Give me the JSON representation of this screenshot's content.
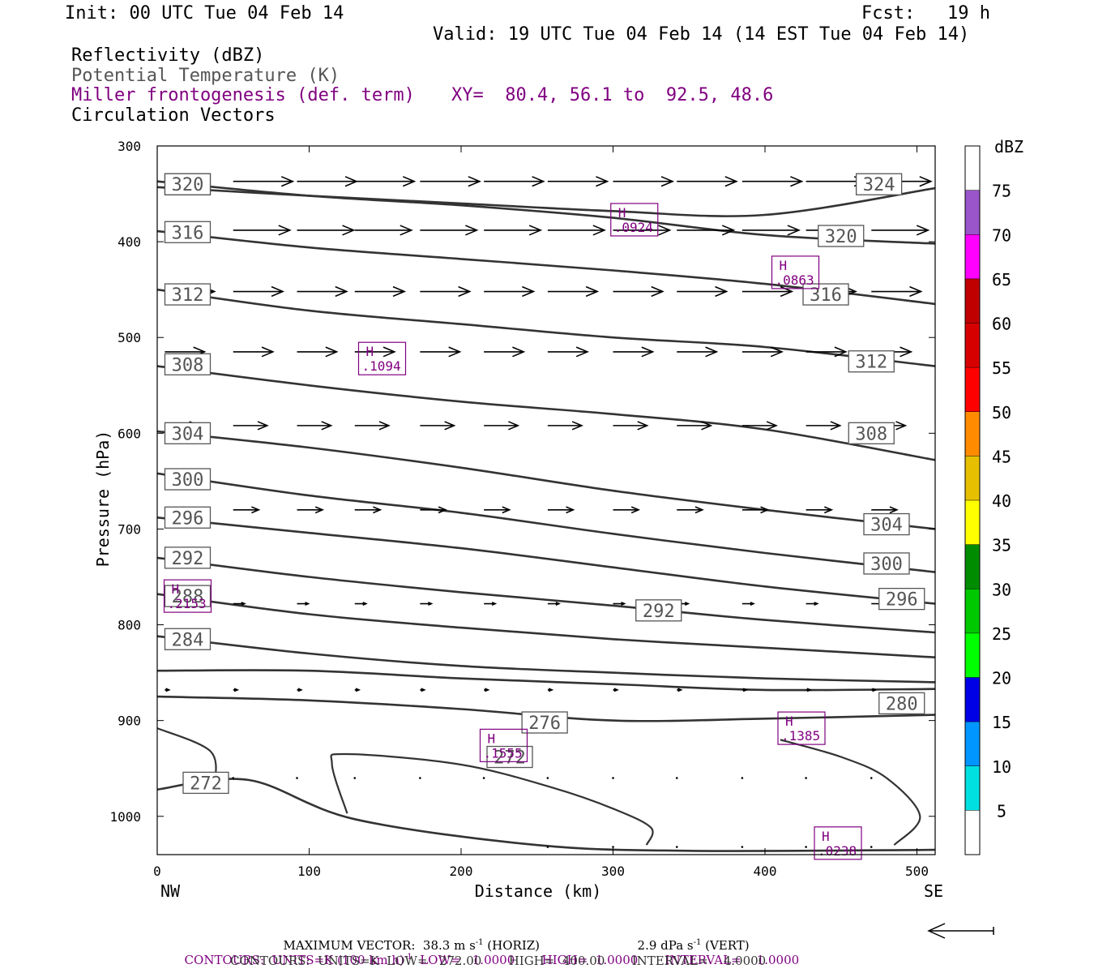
{
  "header": {
    "init": "Init: 00 UTC Tue 04 Feb 14",
    "fcst": "Fcst:   19 h",
    "valid": "Valid: 19 UTC Tue 04 Feb 14 (14 EST Tue 04 Feb 14)",
    "fields": {
      "reflectivity": "Reflectivity (dBZ)",
      "theta": "Potential Temperature (K)",
      "miller": "Miller frontogenesis (def. term)",
      "xy": "XY=  80.4, 56.1 to  92.5, 48.6",
      "vectors": "Circulation Vectors"
    }
  },
  "colors": {
    "theta_line": "#333333",
    "miller": "#800080",
    "vector": "#000000"
  },
  "chart_data": {
    "type": "cross-section",
    "xlabel": "Distance (km)",
    "ylabel": "Pressure (hPa)",
    "x_ticks": [
      0,
      100,
      200,
      300,
      400,
      500
    ],
    "y_ticks": [
      300,
      400,
      500,
      600,
      700,
      800,
      900,
      1000
    ],
    "xlim": [
      0,
      512
    ],
    "ylim": [
      300,
      1040
    ],
    "y_inverted": true,
    "grid": false,
    "end_labels": {
      "left": "NW",
      "right": "SE"
    },
    "theta_contours": [
      {
        "value": 324,
        "points": [
          [
            0,
            343
          ],
          [
            100,
            352
          ],
          [
            200,
            360
          ],
          [
            300,
            368
          ],
          [
            400,
            372
          ],
          [
            512,
            344
          ]
        ],
        "labels": [
          [
            20,
            340
          ],
          [
            475,
            340
          ]
        ]
      },
      {
        "value": 320,
        "points": [
          [
            0,
            337
          ],
          [
            100,
            352
          ],
          [
            200,
            362
          ],
          [
            300,
            375
          ],
          [
            400,
            393
          ],
          [
            512,
            402
          ]
        ],
        "labels": [
          [
            20,
            340
          ],
          [
            450,
            394
          ]
        ]
      },
      {
        "value": 316,
        "points": [
          [
            0,
            389
          ],
          [
            100,
            406
          ],
          [
            200,
            418
          ],
          [
            300,
            430
          ],
          [
            400,
            444
          ],
          [
            512,
            465
          ]
        ],
        "labels": [
          [
            20,
            390
          ],
          [
            440,
            455
          ]
        ]
      },
      {
        "value": 312,
        "points": [
          [
            0,
            450
          ],
          [
            100,
            472
          ],
          [
            200,
            486
          ],
          [
            300,
            500
          ],
          [
            400,
            510
          ],
          [
            512,
            530
          ]
        ],
        "labels": [
          [
            20,
            455
          ],
          [
            470,
            525
          ]
        ]
      },
      {
        "value": 308,
        "points": [
          [
            0,
            530
          ],
          [
            100,
            550
          ],
          [
            200,
            567
          ],
          [
            300,
            580
          ],
          [
            400,
            596
          ],
          [
            512,
            628
          ]
        ],
        "labels": [
          [
            20,
            528
          ],
          [
            470,
            600
          ]
        ]
      },
      {
        "value": 304,
        "points": [
          [
            0,
            598
          ],
          [
            100,
            615
          ],
          [
            200,
            636
          ],
          [
            300,
            660
          ],
          [
            400,
            680
          ],
          [
            512,
            700
          ]
        ],
        "labels": [
          [
            20,
            600
          ],
          [
            480,
            695
          ]
        ]
      },
      {
        "value": 300,
        "points": [
          [
            0,
            642
          ],
          [
            100,
            665
          ],
          [
            200,
            683
          ],
          [
            300,
            705
          ],
          [
            400,
            725
          ],
          [
            512,
            745
          ]
        ],
        "labels": [
          [
            20,
            648
          ],
          [
            480,
            736
          ]
        ]
      },
      {
        "value": 296,
        "points": [
          [
            0,
            688
          ],
          [
            100,
            704
          ],
          [
            200,
            720
          ],
          [
            300,
            740
          ],
          [
            400,
            760
          ],
          [
            512,
            778
          ]
        ],
        "labels": [
          [
            20,
            688
          ],
          [
            490,
            773
          ]
        ]
      },
      {
        "value": 292,
        "points": [
          [
            0,
            730
          ],
          [
            100,
            750
          ],
          [
            200,
            766
          ],
          [
            300,
            780
          ],
          [
            400,
            795
          ],
          [
            512,
            808
          ]
        ],
        "labels": [
          [
            20,
            730
          ],
          [
            330,
            785
          ]
        ]
      },
      {
        "value": 288,
        "points": [
          [
            0,
            768
          ],
          [
            100,
            789
          ],
          [
            200,
            803
          ],
          [
            300,
            815
          ],
          [
            400,
            824
          ],
          [
            512,
            834
          ]
        ],
        "labels": [
          [
            20,
            770
          ]
        ]
      },
      {
        "value": 284,
        "points": [
          [
            0,
            812
          ],
          [
            100,
            830
          ],
          [
            200,
            843
          ],
          [
            300,
            850
          ],
          [
            400,
            856
          ],
          [
            512,
            860
          ]
        ],
        "labels": [
          [
            20,
            815
          ]
        ]
      },
      {
        "value": 280,
        "points": [
          [
            0,
            848
          ],
          [
            100,
            848
          ],
          [
            200,
            856
          ],
          [
            300,
            862
          ],
          [
            400,
            868
          ],
          [
            512,
            867
          ]
        ],
        "labels": [
          [
            490,
            882
          ]
        ]
      },
      {
        "value": 276,
        "points": [
          [
            0,
            875
          ],
          [
            100,
            879
          ],
          [
            200,
            888
          ],
          [
            300,
            900
          ],
          [
            400,
            898
          ],
          [
            512,
            894
          ]
        ],
        "labels": [
          [
            255,
            902
          ]
        ]
      },
      {
        "value": 272,
        "points": [
          [
            0,
            972
          ],
          [
            60,
            962
          ],
          [
            130,
            1003
          ],
          [
            250,
            1030
          ],
          [
            350,
            1036
          ],
          [
            512,
            1035
          ]
        ],
        "labels": [
          [
            32,
            965
          ],
          [
            232,
            938
          ]
        ]
      }
    ],
    "miller_contours": [
      {
        "value": 1.0,
        "points": [
          [
            0,
            908
          ],
          [
            35,
            932
          ],
          [
            38,
            967
          ]
        ]
      },
      {
        "value": 1.0,
        "points": [
          [
            125,
            997
          ],
          [
            115,
            945
          ],
          [
            125,
            935
          ],
          [
            200,
            946
          ],
          [
            260,
            970
          ],
          [
            300,
            992
          ],
          [
            325,
            1012
          ],
          [
            322,
            1030
          ]
        ]
      },
      {
        "value": 1.0,
        "points": [
          [
            485,
            1030
          ],
          [
            502,
            1000
          ],
          [
            480,
            960
          ],
          [
            450,
            938
          ],
          [
            410,
            920
          ]
        ]
      }
    ],
    "miller_maxima": [
      {
        "label": "H",
        "value": ".0924",
        "x": 314,
        "p": 377
      },
      {
        "label": "H",
        "value": ".0863",
        "x": 420,
        "p": 432
      },
      {
        "label": "H",
        "value": ".1094",
        "x": 148,
        "p": 522
      },
      {
        "label": "H",
        "value": ".2153",
        "x": 20,
        "p": 770
      },
      {
        "label": "H",
        "value": ".1555",
        "x": 228,
        "p": 926
      },
      {
        "label": "H",
        "value": ".1385",
        "x": 424,
        "p": 908
      },
      {
        "label": "H",
        "value": ".0238",
        "x": 448,
        "p": 1028
      }
    ],
    "vector_rows": [
      {
        "p": 337,
        "u": 42,
        "w": 0,
        "xs": [
          50,
          92,
          130,
          173,
          215,
          257,
          300,
          342,
          385,
          427,
          470
        ]
      },
      {
        "p": 388,
        "u": 40,
        "w": 0,
        "xs": [
          50,
          92,
          130,
          173,
          215,
          257,
          300,
          342,
          385,
          427,
          470
        ]
      },
      {
        "p": 452,
        "u": 35,
        "w": 0,
        "xs": [
          5,
          50,
          92,
          130,
          173,
          215,
          257,
          300,
          342,
          385,
          427,
          470
        ]
      },
      {
        "p": 515,
        "u": 28,
        "w": 0,
        "xs": [
          5,
          50,
          92,
          130,
          173,
          215,
          257,
          300,
          342,
          385,
          427,
          470
        ]
      },
      {
        "p": 592,
        "u": 24,
        "w": 0,
        "xs": [
          5,
          50,
          92,
          130,
          173,
          215,
          257,
          300,
          342,
          385,
          427,
          470
        ]
      },
      {
        "p": 680,
        "u": 18,
        "w": 0,
        "xs": [
          5,
          50,
          92,
          130,
          173,
          215,
          257,
          300,
          342,
          385,
          427,
          470
        ]
      },
      {
        "p": 778,
        "u": 8,
        "w": 0,
        "xs": [
          5,
          50,
          92,
          130,
          173,
          215,
          257,
          300,
          342,
          385,
          427,
          470
        ]
      },
      {
        "p": 868,
        "u": 3,
        "w": 0,
        "xs": [
          5,
          50,
          92,
          130,
          173,
          215,
          257,
          300,
          342,
          385,
          427,
          470
        ]
      },
      {
        "p": 960,
        "u": 1,
        "w": 0,
        "xs": [
          50,
          92,
          130,
          173,
          215,
          257,
          300,
          342,
          385,
          427,
          470
        ]
      },
      {
        "p": 1032,
        "u": 0.5,
        "w": 0,
        "xs": [
          257,
          300,
          342,
          385,
          427,
          470
        ]
      }
    ],
    "colorbar": {
      "title": "dBZ",
      "labels": [
        "5",
        "10",
        "15",
        "20",
        "25",
        "30",
        "35",
        "40",
        "45",
        "50",
        "55",
        "60",
        "65",
        "70",
        "75"
      ],
      "colors": [
        "#ffffff",
        "#00e0e0",
        "#0096ff",
        "#0000e6",
        "#00ff00",
        "#00c800",
        "#008c00",
        "#ffff00",
        "#e6c000",
        "#ff8c00",
        "#ff0000",
        "#d70000",
        "#c00000",
        "#ff00ff",
        "#9955c9",
        "#ffffff"
      ]
    }
  },
  "footer": {
    "maxvec": "MAXIMUM VECTOR:  38.3 m s",
    "maxvec_exp": "-1",
    "maxvec_horiz": " (HORIZ)",
    "maxvec_vert": "2.9 dPa s",
    "maxvec_vert_exp": "-1",
    "maxvec_vert_tail": " (VERT)",
    "contours1_a": "CONTOURS:  UNITS=K (100 km h)",
    "contours1_exp": "-1",
    "contours1_b": "  LOW=   1.0000       HIGH=  1.0000       INTERVAL=    1.0000",
    "contours2": "CONTOURS:  UNITS=K  LOW=   272.00       HIGH=  400.00       INTERVAL=    4.0000"
  }
}
